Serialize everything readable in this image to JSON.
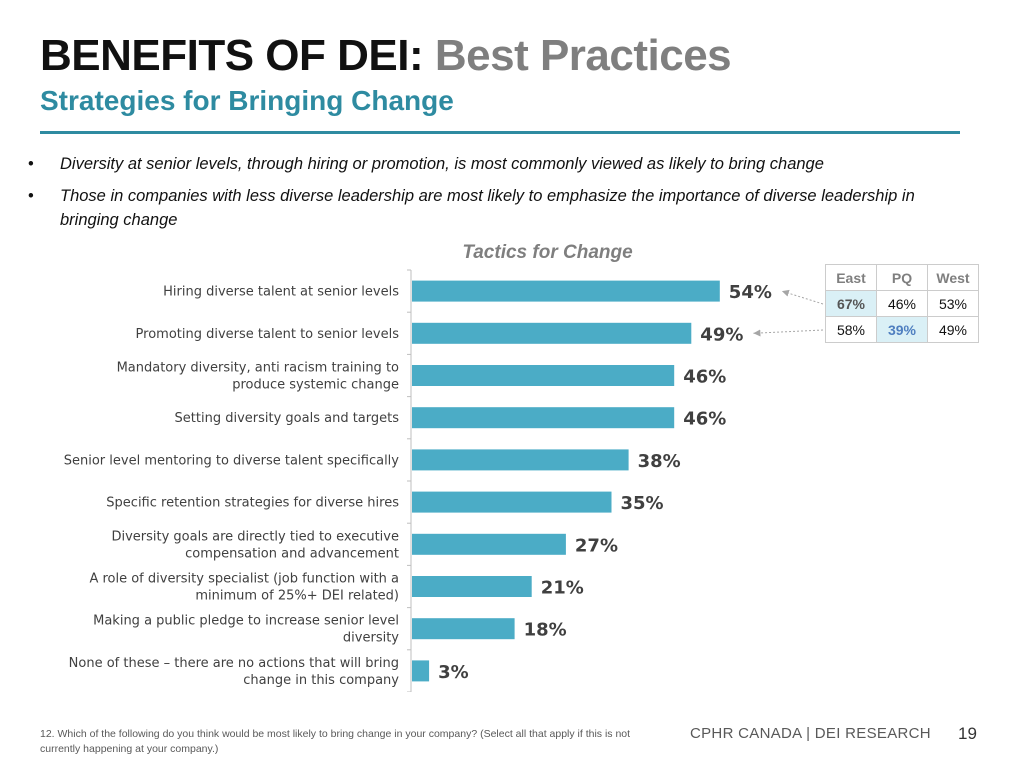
{
  "slide": {
    "title_main": "BENEFITS OF DEI:",
    "title_accent": "Best Practices",
    "subtitle": "Strategies for Bringing Change",
    "bullets": [
      "Diversity at senior levels, through hiring or promotion, is most commonly viewed as likely to bring change",
      "Those in companies with less diverse leadership are most likely to emphasize the importance of diverse leadership in bringing change"
    ],
    "bullet_symbol": "•",
    "footnote": "12. Which of the following do you think would be most likely to bring change in your company? (Select all that apply if this is not currently happening at your company.)",
    "footer_brand": "CPHR CANADA | DEI RESEARCH",
    "page_number": "19",
    "colors": {
      "bar": "#4bacc6",
      "title_accent": "#7f7f7f",
      "subtitle": "#2e8ba1",
      "highlight_fill": "#daf0f6"
    }
  },
  "chart_data": {
    "type": "bar",
    "orientation": "horizontal",
    "title": "Tactics for Change",
    "categories": [
      [
        "Hiring diverse talent at senior levels"
      ],
      [
        "Promoting diverse talent to senior levels"
      ],
      [
        "Mandatory diversity, anti racism training to",
        "produce systemic change"
      ],
      [
        "Setting diversity goals and targets"
      ],
      [
        "Senior level mentoring to diverse talent specifically"
      ],
      [
        "Specific retention strategies for diverse hires"
      ],
      [
        "Diversity goals are directly tied to executive",
        "compensation and advancement"
      ],
      [
        "A role of diversity specialist (job function with a",
        "minimum of 25%+ DEI related)"
      ],
      [
        "Making a public pledge to increase senior level",
        "diversity"
      ],
      [
        "None of these – there are no actions that will bring",
        "change in this company"
      ]
    ],
    "values": [
      54,
      49,
      46,
      46,
      38,
      35,
      27,
      21,
      18,
      3
    ],
    "value_suffix": "%",
    "xlim": [
      0,
      100
    ],
    "grid": false,
    "legend": "none",
    "region_table": {
      "headers": [
        "East",
        "PQ",
        "West"
      ],
      "rows": [
        {
          "category_index": 0,
          "values": [
            "67%",
            "46%",
            "53%"
          ],
          "highlight": [
            0
          ]
        },
        {
          "category_index": 1,
          "values": [
            "58%",
            "39%",
            "49%"
          ],
          "highlight": [
            1
          ]
        }
      ]
    }
  }
}
